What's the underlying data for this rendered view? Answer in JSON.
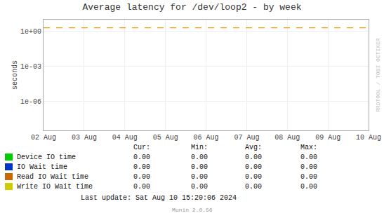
{
  "chart_data": {
    "type": "line",
    "title": "Average latency for /dev/loop2 - by week",
    "ylabel": "seconds",
    "log": "y",
    "grid": true,
    "categories": [
      "02 Aug",
      "03 Aug",
      "04 Aug",
      "05 Aug",
      "06 Aug",
      "07 Aug",
      "08 Aug",
      "09 Aug",
      "10 Aug"
    ],
    "ylim": [
      3e-09,
      10
    ],
    "yticks": [
      {
        "value": 1e-06,
        "label": "1e-06"
      },
      {
        "value": 0.001,
        "label": "1e-03"
      },
      {
        "value": 1,
        "label": "1e+00"
      }
    ],
    "series": [
      {
        "name": "Device IO time",
        "color": "#00cc00",
        "values": [
          null,
          null,
          null,
          null,
          null,
          null,
          null,
          null,
          null
        ],
        "table_values": [
          "0.00",
          "0.00",
          "0.00",
          "0.00"
        ]
      },
      {
        "name": "IO Wait time",
        "color": "#0033cc",
        "values": [
          null,
          null,
          null,
          null,
          null,
          null,
          null,
          null,
          null
        ],
        "table_values": [
          "0.00",
          "0.00",
          "0.00",
          "0.00"
        ]
      },
      {
        "name": "Read IO Wait time",
        "color": "#cc6600",
        "values": [
          null,
          null,
          null,
          null,
          null,
          null,
          null,
          null,
          null
        ],
        "table_values": [
          "0.00",
          "0.00",
          "0.00",
          "0.00"
        ]
      },
      {
        "name": "Write IO Wait time",
        "color": "#cccc00",
        "values": [
          null,
          null,
          null,
          null,
          null,
          null,
          null,
          null,
          null
        ],
        "table_values": [
          "0.00",
          "0.00",
          "0.00",
          "0.00"
        ]
      }
    ],
    "reference_lines": [
      {
        "value": 2.0,
        "color": "#ff9900",
        "line_style": "dashed"
      }
    ],
    "table_headers": [
      "Cur:",
      "Min:",
      "Avg:",
      "Max:"
    ],
    "watermark": "RRDTOOL / TOBI OETIKER",
    "last_update": "Last update: Sat Aug 10 15:20:06 2024",
    "footer": "Munin 2.0.56"
  }
}
